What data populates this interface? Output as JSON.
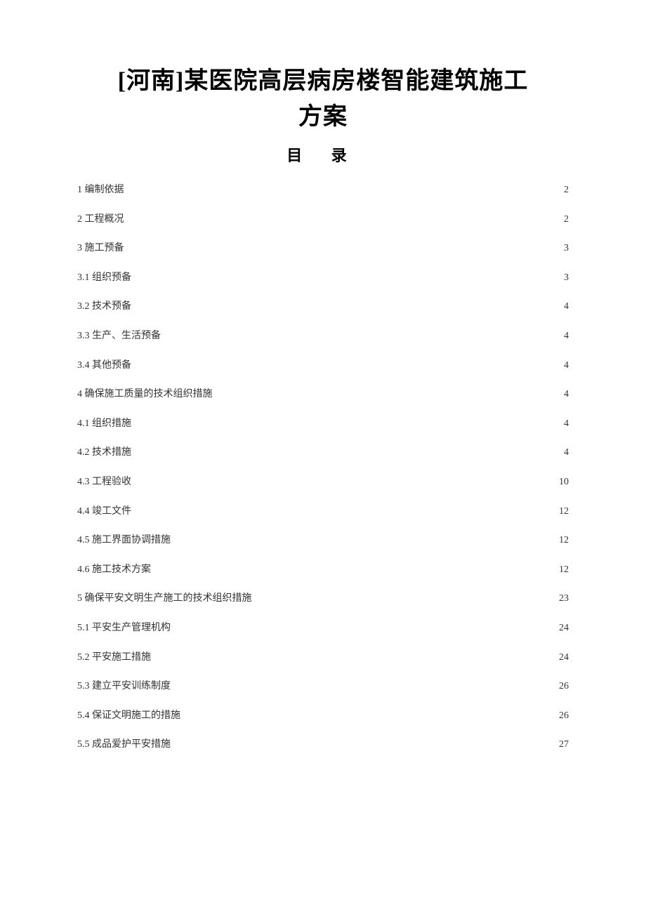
{
  "document": {
    "title_line1": "[河南]某医院高层病房楼智能建筑施工",
    "title_line2": "方案",
    "toc_heading": "目  录",
    "title_fontsize": 34,
    "toc_heading_fontsize": 22,
    "entry_fontsize": 14,
    "background_color": "#ffffff",
    "text_color": "#333333",
    "title_color": "#000000"
  },
  "toc": {
    "entries": [
      {
        "label": "1  编制依据",
        "page": "2"
      },
      {
        "label": "2 工程概况",
        "page": "2"
      },
      {
        "label": "3  施工预备",
        "page": "3"
      },
      {
        "label": "3.1 组织预备",
        "page": "3"
      },
      {
        "label": "3.2 技术预备",
        "page": "4"
      },
      {
        "label": "3.3 生产、生活预备",
        "page": "4"
      },
      {
        "label": "3.4 其他预备",
        "page": "4"
      },
      {
        "label": "4 确保施工质量的技术组织措施",
        "page": "4"
      },
      {
        "label": "4.1 组织措施",
        "page": "4"
      },
      {
        "label": "4.2 技术措施",
        "page": "4"
      },
      {
        "label": "4.3 工程验收",
        "page": "10"
      },
      {
        "label": "4.4 竣工文件",
        "page": "12"
      },
      {
        "label": "4.5 施工界面协调措施",
        "page": "12"
      },
      {
        "label": "4.6 施工技术方案",
        "page": "12"
      },
      {
        "label": "5 确保平安文明生产施工的技术组织措施",
        "page": "23"
      },
      {
        "label": "5.1 平安生产管理机构",
        "page": "24"
      },
      {
        "label": "5.2 平安施工措施",
        "page": "24"
      },
      {
        "label": "5.3 建立平安训练制度",
        "page": "26"
      },
      {
        "label": "5.4 保证文明施工的措施",
        "page": "26"
      },
      {
        "label": "5.5 成品爱护平安措施",
        "page": "27"
      }
    ]
  }
}
